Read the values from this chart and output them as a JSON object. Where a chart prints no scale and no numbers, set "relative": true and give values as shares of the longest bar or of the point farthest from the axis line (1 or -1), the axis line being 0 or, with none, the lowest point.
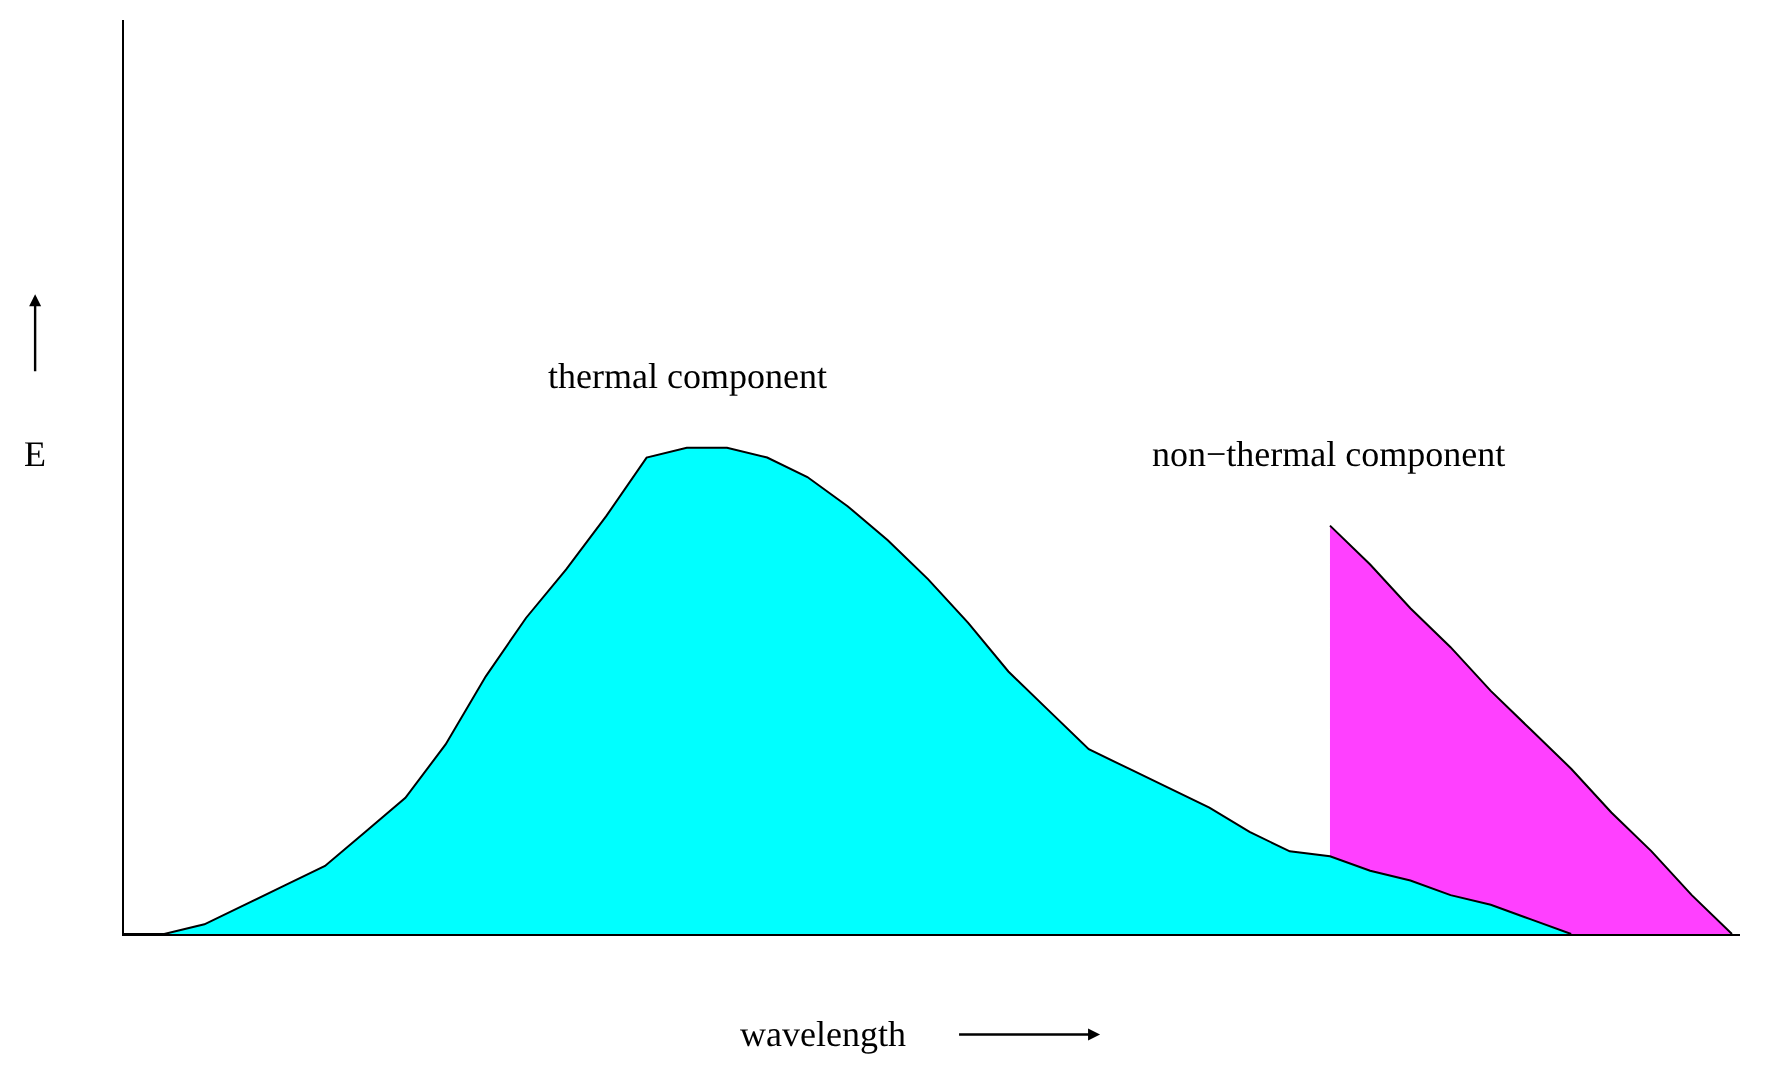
{
  "chart_data": {
    "type": "area",
    "relative": true,
    "xlabel": "wavelength",
    "ylabel": "E",
    "categories": [
      null,
      null,
      null,
      null,
      null,
      null,
      null,
      null,
      null,
      null,
      null,
      null,
      null,
      null,
      null,
      null,
      null,
      null,
      null,
      null,
      null,
      null,
      null,
      null,
      null,
      null,
      null,
      null,
      null,
      null,
      null,
      null,
      null,
      null,
      null,
      null,
      null,
      null,
      null,
      null,
      null
    ],
    "series": [
      {
        "name": "non−thermal component",
        "color": "#ff40ff",
        "values": [
          null,
          null,
          null,
          null,
          null,
          null,
          null,
          null,
          null,
          null,
          null,
          null,
          null,
          null,
          null,
          null,
          null,
          null,
          null,
          null,
          null,
          null,
          null,
          null,
          null,
          null,
          null,
          null,
          null,
          null,
          0.84,
          0.76,
          0.67,
          0.59,
          0.5,
          0.42,
          0.34,
          0.25,
          0.17,
          0.08,
          0
        ]
      },
      {
        "name": "thermal component",
        "color": "#00ffff",
        "values": [
          0,
          0,
          0.02,
          0.06,
          0.1,
          0.14,
          0.21,
          0.28,
          0.39,
          0.53,
          0.65,
          0.75,
          0.86,
          0.98,
          1,
          1,
          0.98,
          0.94,
          0.88,
          0.81,
          0.73,
          0.64,
          0.54,
          0.46,
          0.38,
          0.34,
          0.3,
          0.26,
          0.21,
          0.17,
          0.16,
          0.13,
          0.11,
          0.08,
          0.06,
          0.03,
          0,
          null,
          null,
          null,
          null
        ]
      }
    ],
    "legend": false
  }
}
